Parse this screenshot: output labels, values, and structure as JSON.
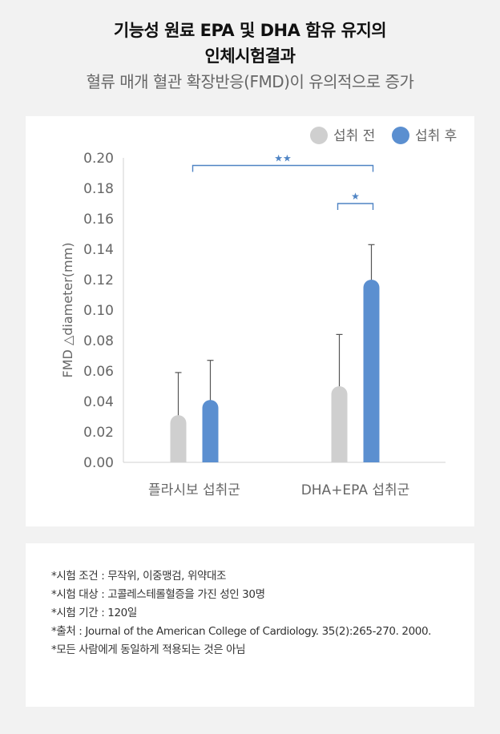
{
  "header": {
    "title_line1": "기능성 원료 EPA 및 DHA 함유 유지의",
    "title_line2": "인체시험결과",
    "subtitle": "혈류 매개 혈관 확장반응(FMD)이 유의적으로 증가"
  },
  "chart_data": {
    "type": "bar",
    "categories": [
      "플라시보 섭취군",
      "DHA+EPA 섭취군"
    ],
    "series": [
      {
        "name": "섭취 전",
        "color": "#cfcfcf",
        "values": [
          0.031,
          0.05
        ],
        "error_upper": [
          0.059,
          0.084
        ]
      },
      {
        "name": "섭취 후",
        "color": "#5b8fd0",
        "values": [
          0.041,
          0.12
        ],
        "error_upper": [
          0.067,
          0.143
        ]
      }
    ],
    "ylabel": "FMD △diameter(mm)",
    "ylim": [
      0,
      0.2
    ],
    "yticks": [
      "0.00",
      "0.02",
      "0.04",
      "0.06",
      "0.08",
      "0.10",
      "0.12",
      "0.14",
      "0.16",
      "0.18",
      "0.20"
    ],
    "legend_position": "top-right",
    "grid": false,
    "significance": [
      {
        "label": "★★",
        "from_category": 0,
        "to_category": 1,
        "y": 0.195
      },
      {
        "label": "★",
        "category": 1,
        "y": 0.17
      }
    ]
  },
  "notes": [
    "*시험 조건 : 무작위, 이중맹검, 위약대조",
    "*시험 대상 : 고콜레스테롤혈증을 가진 성인 30명",
    "*시험 기간 : 120일",
    "*출처 : Journal of the American College of Cardiology. 35(2):265-270. 2000.",
    "*모든 사람에게 동일하게 적용되는 것은 아님"
  ]
}
